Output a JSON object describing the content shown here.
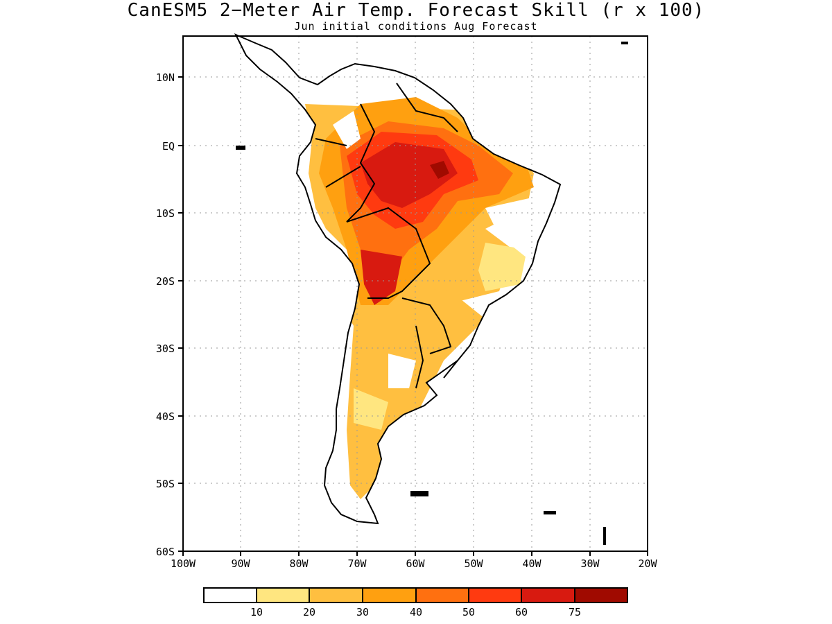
{
  "title": "CanESM5 2−Meter Air Temp. Forecast Skill (r x 100)",
  "subtitle": "Jun initial conditions  Aug Forecast",
  "map": {
    "lat_ticks": [
      "10N",
      "EQ",
      "10S",
      "20S",
      "30S",
      "40S",
      "50S",
      "60S"
    ],
    "lon_ticks": [
      "100W",
      "90W",
      "80W",
      "70W",
      "60W",
      "50W",
      "40W",
      "30W",
      "20W"
    ],
    "extent": {
      "lon": [
        -100,
        -20
      ],
      "lat": [
        -60,
        16
      ]
    }
  },
  "colorbar": {
    "colors": [
      "#ffffff",
      "#ffe680",
      "#ffbf40",
      "#ffa010",
      "#ff7010",
      "#ff3a10",
      "#d81a10",
      "#a00a00"
    ],
    "labels": [
      "10",
      "20",
      "30",
      "40",
      "50",
      "60",
      "75"
    ]
  }
}
